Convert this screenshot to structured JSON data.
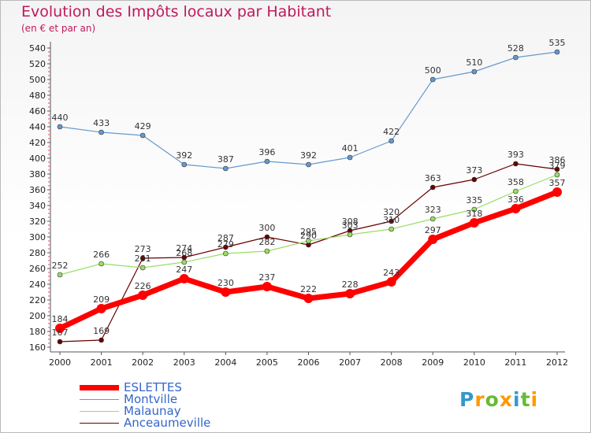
{
  "title": "Evolution des Impôts locaux par Habitant",
  "subtitle": "(en € et par an)",
  "logo": {
    "text": "Proxiti",
    "colors": [
      "#3399cc",
      "#ff9900",
      "#66bb33",
      "#ff9900",
      "#3399cc",
      "#66bb33",
      "#ff9900"
    ]
  },
  "chart_data": {
    "type": "line",
    "x": [
      "2000",
      "2001",
      "2002",
      "2003",
      "2004",
      "2005",
      "2006",
      "2007",
      "2008",
      "2009",
      "2010",
      "2011",
      "2012"
    ],
    "ylim": [
      160,
      540
    ],
    "yticks": [
      160,
      180,
      200,
      220,
      240,
      260,
      280,
      300,
      320,
      340,
      360,
      380,
      400,
      420,
      440,
      460,
      480,
      500,
      520,
      540
    ],
    "grid": false,
    "legend_position": "bottom-left",
    "series": [
      {
        "name": "ESLETTES",
        "color": "#ff0000",
        "values": [
          184,
          209,
          226,
          247,
          230,
          237,
          222,
          228,
          243,
          297,
          318,
          336,
          357
        ]
      },
      {
        "name": "Montville",
        "color": "#6699cc",
        "values": [
          440,
          433,
          429,
          392,
          387,
          396,
          392,
          401,
          422,
          500,
          510,
          528,
          535
        ]
      },
      {
        "name": "Malaunay",
        "color": "#99dd66",
        "values": [
          252,
          266,
          261,
          268,
          279,
          282,
          295,
          303,
          310,
          323,
          335,
          358,
          379
        ]
      },
      {
        "name": "Anceaumeville",
        "color": "#660000",
        "values": [
          167,
          169,
          273,
          274,
          287,
          300,
          290,
          308,
          320,
          363,
          373,
          393,
          386
        ]
      }
    ]
  }
}
